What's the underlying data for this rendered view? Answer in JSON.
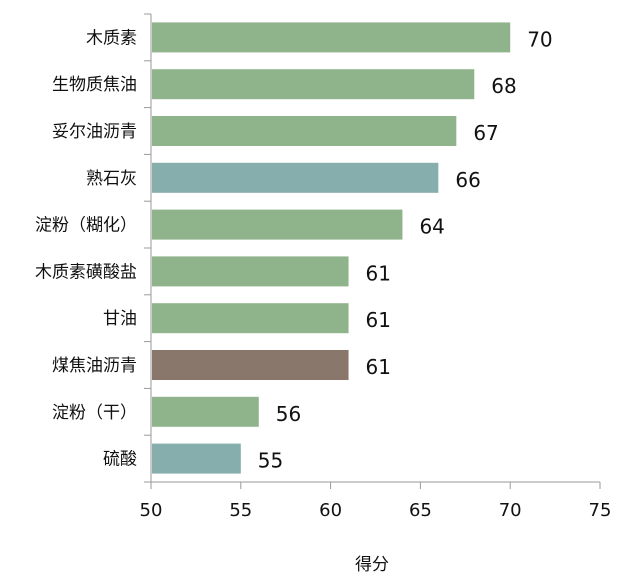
{
  "chart_data": {
    "type": "bar",
    "orientation": "horizontal",
    "categories": [
      "木质素",
      "生物质焦油",
      "妥尔油沥青",
      "熟石灰",
      "淀粉（糊化）",
      "木质素磺酸盐",
      "甘油",
      "煤焦油沥青",
      "淀粉（干）",
      "硫酸"
    ],
    "values": [
      70,
      68,
      67,
      66,
      64,
      61,
      61,
      61,
      56,
      55
    ],
    "value_labels": [
      "70",
      "68",
      "67",
      "66",
      "64",
      "61",
      "61",
      "61",
      "56",
      "55"
    ],
    "bar_colors": [
      "#8fb38a",
      "#8fb38a",
      "#8fb38a",
      "#86aead",
      "#8fb38a",
      "#8fb38a",
      "#8fb38a",
      "#8a776c",
      "#8fb38a",
      "#86aead"
    ],
    "xlabel": "得分",
    "ylabel": "",
    "title": "",
    "xlim": [
      50,
      75
    ],
    "xticks": [
      "50",
      "55",
      "60",
      "65",
      "70",
      "75"
    ],
    "grid": false,
    "legend": "none"
  }
}
